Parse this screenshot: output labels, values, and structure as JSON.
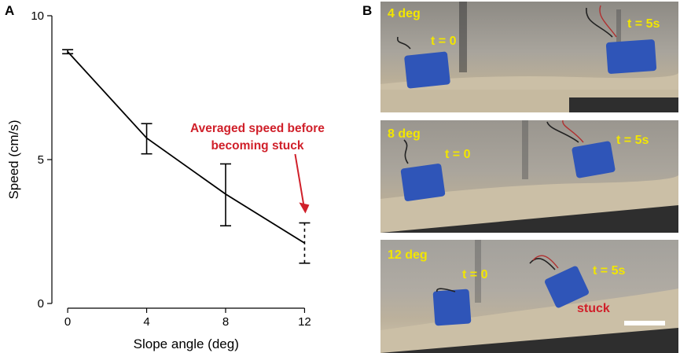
{
  "panel_labels": {
    "a": "A",
    "b": "B"
  },
  "chart_data": {
    "type": "line",
    "xlabel": "Slope angle (deg)",
    "ylabel": "Speed (cm/s)",
    "x": [
      0,
      4,
      8,
      12
    ],
    "xticks": [
      "0",
      "4",
      "8",
      "12"
    ],
    "yticks": [
      "0",
      "5",
      "10"
    ],
    "xlim": [
      -0.8,
      12.5
    ],
    "ylim": [
      0,
      10
    ],
    "series": [
      {
        "values": [
          8.75,
          5.75,
          3.8,
          2.1
        ],
        "err_low": [
          8.68,
          5.2,
          2.7,
          1.4
        ],
        "err_high": [
          8.82,
          6.25,
          4.85,
          2.8
        ],
        "dashed_error_bar_index": 3
      }
    ],
    "grid": false,
    "annotation": {
      "line1": "Averaged speed before",
      "line2": "becoming stuck",
      "color": "#d0202a",
      "points_to_x": 12
    }
  },
  "photos": [
    {
      "angle_label": "4 deg",
      "t0_label": "t = 0",
      "t5_label": "t = 5s"
    },
    {
      "angle_label": "8 deg",
      "t0_label": "t = 0",
      "t5_label": "t = 5s"
    },
    {
      "angle_label": "12 deg",
      "t0_label": "t = 0",
      "t5_label": "t = 5s",
      "stuck_label": "stuck"
    }
  ],
  "colors": {
    "text_yellow": "#f2e600",
    "text_red": "#d0202a",
    "robot_blue": "#2f55b8",
    "sand": "#cbbfa6"
  }
}
